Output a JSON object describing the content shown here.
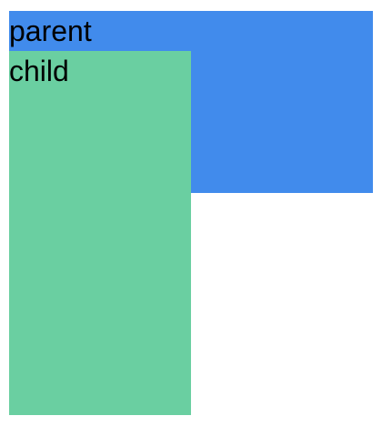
{
  "parent": {
    "label": "parent",
    "color": "#418bec"
  },
  "child": {
    "label": "child",
    "color": "#6acfa1"
  }
}
